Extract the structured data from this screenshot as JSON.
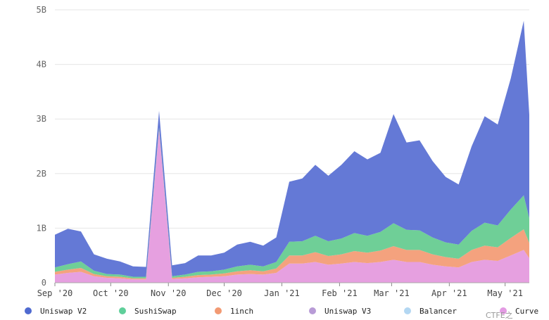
{
  "chart_data": {
    "type": "area",
    "stacked": true,
    "title": "",
    "xlabel": "",
    "ylabel": "",
    "ylim": [
      0,
      5000000000
    ],
    "y_ticks": [
      {
        "value": 0,
        "label": "0"
      },
      {
        "value": 1000000000,
        "label": "1B"
      },
      {
        "value": 2000000000,
        "label": "2B"
      },
      {
        "value": 3000000000,
        "label": "3B"
      },
      {
        "value": 4000000000,
        "label": "4B"
      },
      {
        "value": 5000000000,
        "label": "5B"
      }
    ],
    "x_ticks": [
      "Sep '20",
      "Oct '20",
      "Nov '20",
      "Dec '20",
      "Jan '21",
      "Feb '21",
      "Mar '21",
      "Apr '21",
      "May '21"
    ],
    "grid": true,
    "legend_position": "bottom",
    "x": [
      "2020-09-01",
      "2020-09-08",
      "2020-09-15",
      "2020-09-22",
      "2020-09-29",
      "2020-10-06",
      "2020-10-13",
      "2020-10-20",
      "2020-10-27",
      "2020-11-03",
      "2020-11-10",
      "2020-11-17",
      "2020-11-24",
      "2020-12-01",
      "2020-12-08",
      "2020-12-15",
      "2020-12-22",
      "2020-12-29",
      "2021-01-05",
      "2021-01-12",
      "2021-01-19",
      "2021-01-26",
      "2021-02-02",
      "2021-02-09",
      "2021-02-16",
      "2021-02-23",
      "2021-03-02",
      "2021-03-09",
      "2021-03-16",
      "2021-03-23",
      "2021-03-30",
      "2021-04-06",
      "2021-04-13",
      "2021-04-20",
      "2021-04-27",
      "2021-05-04",
      "2021-05-11",
      "2021-05-14"
    ],
    "series": [
      {
        "name": "Curve",
        "color": "#e6a0e0",
        "values": [
          150000000,
          180000000,
          200000000,
          120000000,
          90000000,
          80000000,
          60000000,
          60000000,
          2800000000,
          70000000,
          80000000,
          100000000,
          110000000,
          120000000,
          150000000,
          160000000,
          150000000,
          180000000,
          350000000,
          350000000,
          380000000,
          330000000,
          350000000,
          380000000,
          360000000,
          380000000,
          420000000,
          380000000,
          380000000,
          330000000,
          300000000,
          280000000,
          380000000,
          420000000,
          400000000,
          500000000,
          600000000,
          450000000
        ]
      },
      {
        "name": "1inch",
        "color": "#f4a27e",
        "values": [
          50000000,
          60000000,
          70000000,
          40000000,
          30000000,
          30000000,
          20000000,
          20000000,
          20000000,
          20000000,
          30000000,
          40000000,
          40000000,
          50000000,
          60000000,
          70000000,
          60000000,
          80000000,
          150000000,
          150000000,
          180000000,
          160000000,
          170000000,
          200000000,
          190000000,
          210000000,
          250000000,
          220000000,
          220000000,
          190000000,
          170000000,
          160000000,
          220000000,
          260000000,
          250000000,
          320000000,
          380000000,
          280000000
        ]
      },
      {
        "name": "SushiSwap",
        "color": "#6fcf97",
        "values": [
          80000000,
          100000000,
          120000000,
          60000000,
          40000000,
          40000000,
          30000000,
          30000000,
          30000000,
          30000000,
          40000000,
          60000000,
          60000000,
          70000000,
          90000000,
          100000000,
          90000000,
          120000000,
          250000000,
          260000000,
          300000000,
          270000000,
          290000000,
          330000000,
          310000000,
          340000000,
          420000000,
          370000000,
          360000000,
          310000000,
          270000000,
          260000000,
          350000000,
          420000000,
          400000000,
          520000000,
          620000000,
          450000000
        ]
      },
      {
        "name": "Uniswap V2",
        "color": "#6479d6",
        "values": [
          600000000,
          650000000,
          550000000,
          300000000,
          280000000,
          240000000,
          190000000,
          180000000,
          300000000,
          200000000,
          210000000,
          300000000,
          290000000,
          310000000,
          400000000,
          420000000,
          380000000,
          450000000,
          1100000000,
          1150000000,
          1300000000,
          1200000000,
          1350000000,
          1500000000,
          1400000000,
          1450000000,
          2000000000,
          1600000000,
          1650000000,
          1400000000,
          1200000000,
          1100000000,
          1550000000,
          1950000000,
          1850000000,
          2400000000,
          3200000000,
          1900000000
        ]
      }
    ],
    "legend": [
      {
        "name": "Uniswap V2",
        "color": "#4f6ad0"
      },
      {
        "name": "SushiSwap",
        "color": "#5fcf9a"
      },
      {
        "name": "1inch",
        "color": "#f29a73"
      },
      {
        "name": "Uniswap V3",
        "color": "#b89bd6"
      },
      {
        "name": "Balancer",
        "color": "#b3d7f2"
      },
      {
        "name": "Curve",
        "color": "#e39be3"
      }
    ]
  },
  "watermark": "CTFE之"
}
